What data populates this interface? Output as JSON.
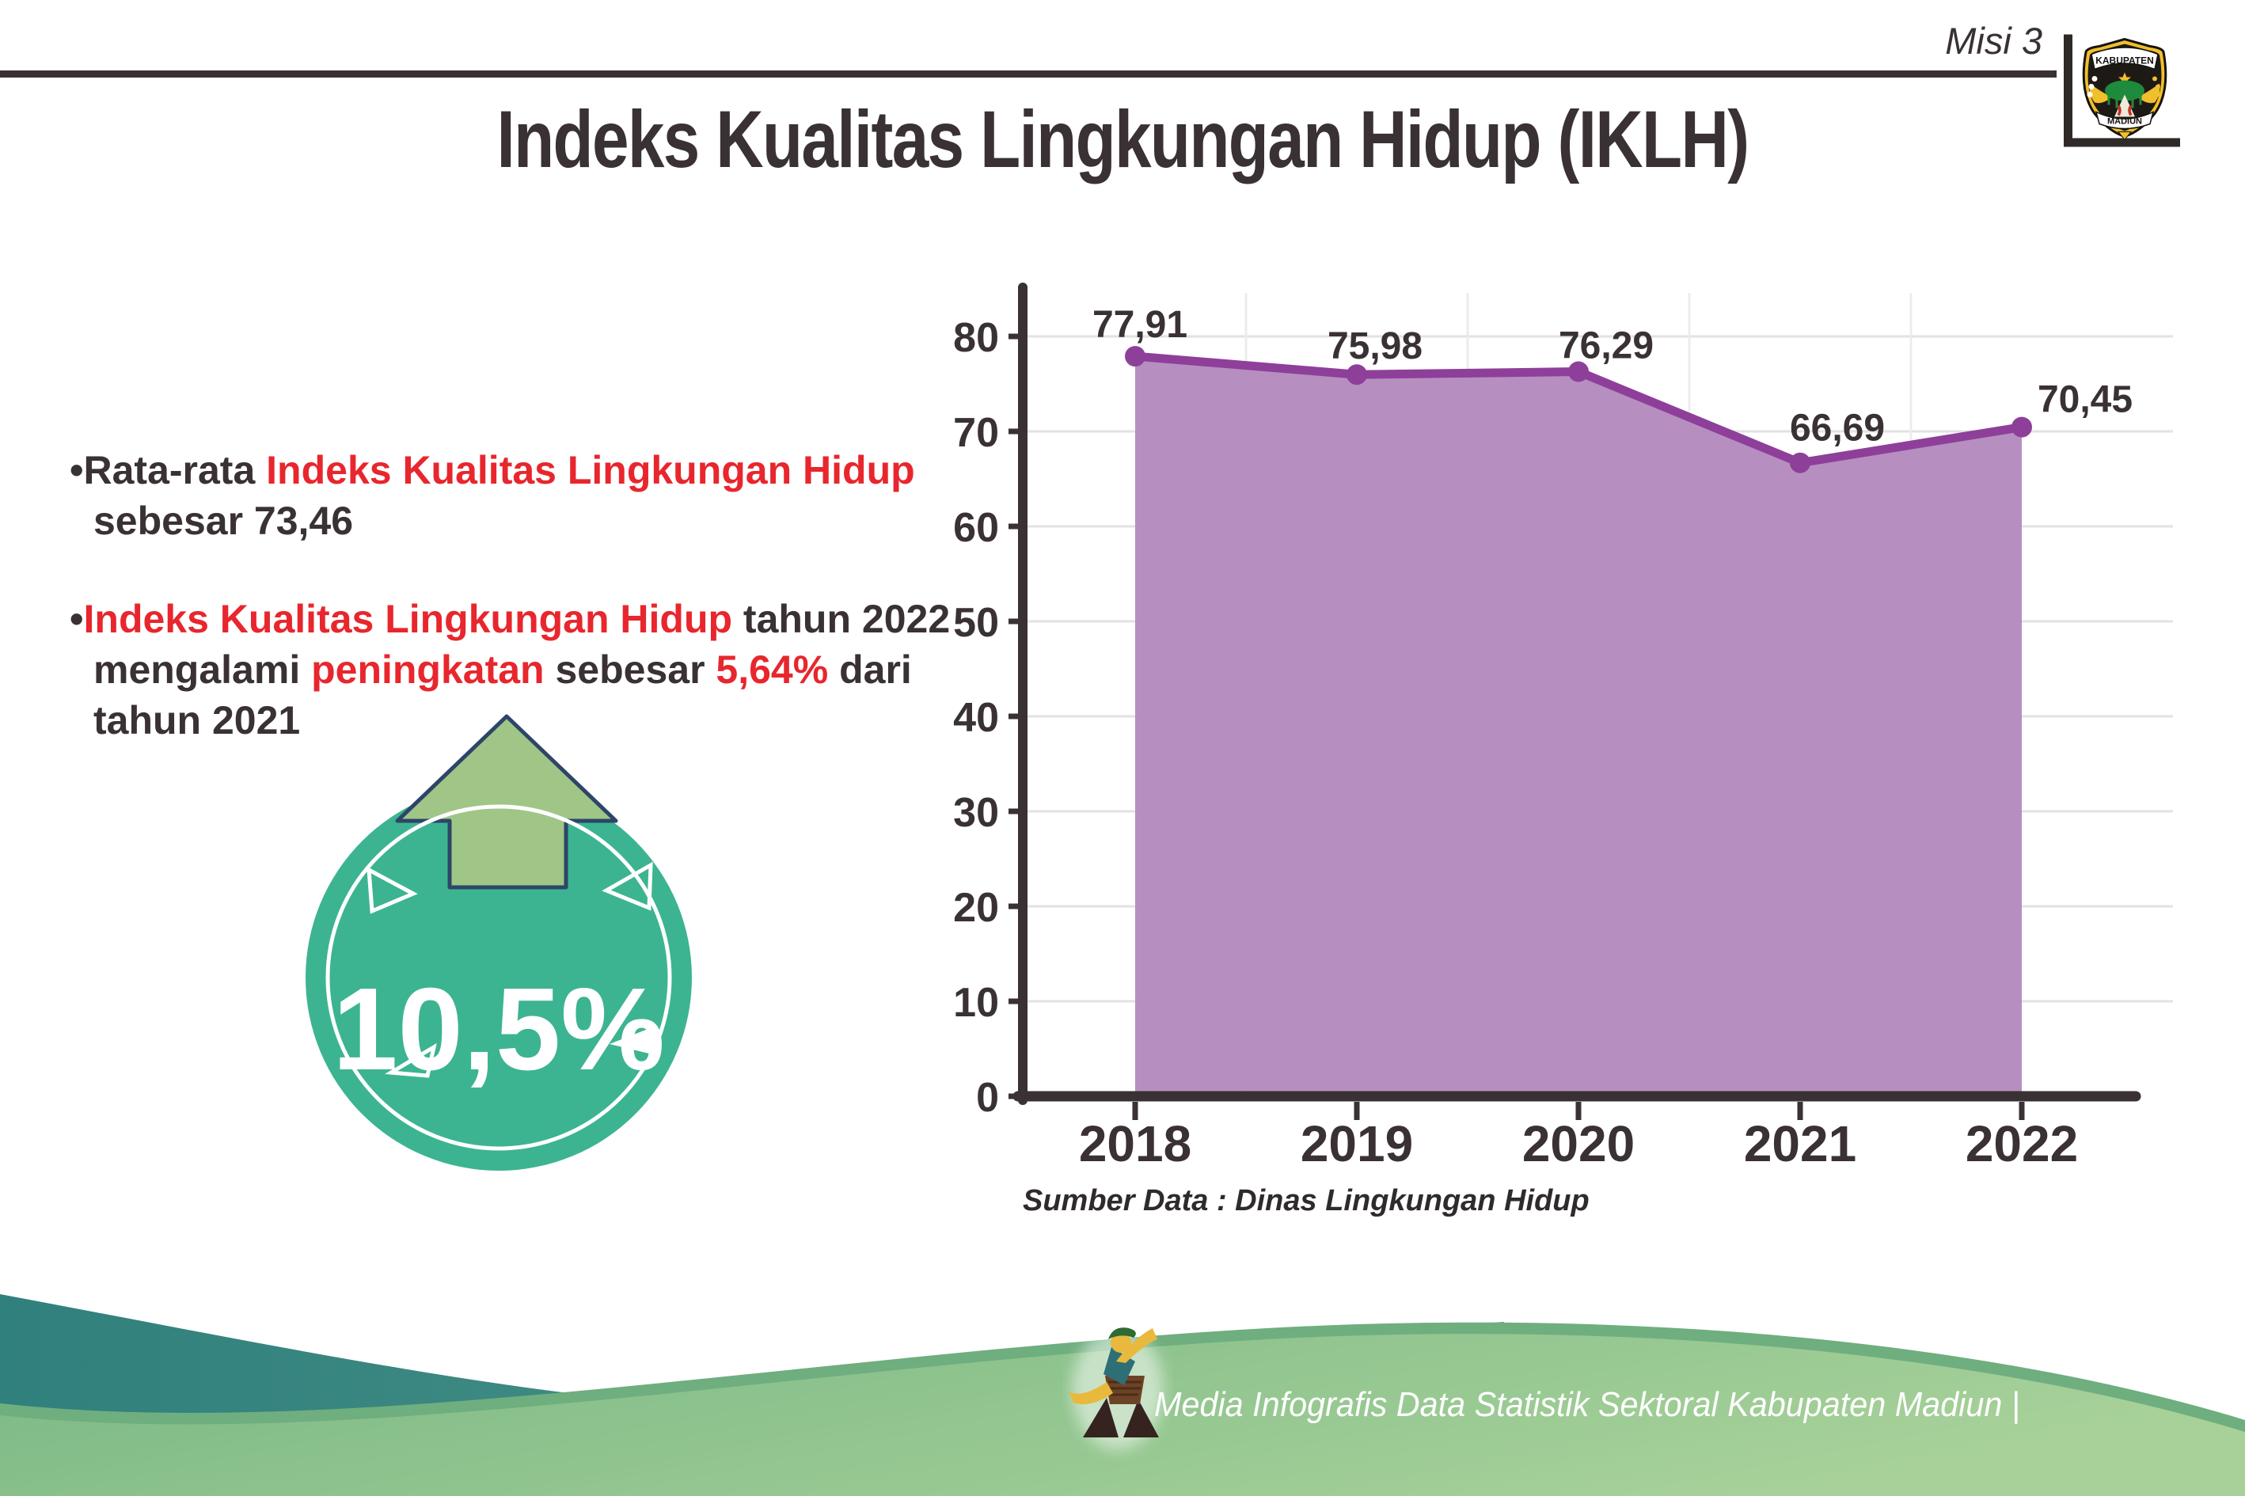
{
  "header": {
    "misi_label": "Misi 3",
    "title": "Indeks Kualitas Lingkungan Hidup (IKLH)",
    "logo": {
      "top_text": "KABUPATEN",
      "bottom_text": "MADIUN"
    }
  },
  "bullets": {
    "b1": [
      {
        "t": "•",
        "c": "dark"
      },
      {
        "t": "Rata-rata ",
        "c": "dark"
      },
      {
        "t": "Indeks Kualitas Lingkungan Hidup",
        "c": "red"
      },
      {
        "t": "\nsebesar 73,46",
        "c": "dark"
      }
    ],
    "b2": [
      {
        "t": "•",
        "c": "dark"
      },
      {
        "t": "Indeks Kualitas Lingkungan Hidup",
        "c": "red"
      },
      {
        "t": " tahun 2022\nmengalami ",
        "c": "dark"
      },
      {
        "t": "peningkatan",
        "c": "red"
      },
      {
        "t": " sebesar ",
        "c": "dark"
      },
      {
        "t": "5,64%",
        "c": "red"
      },
      {
        "t": " dari\ntahun 2021",
        "c": "dark"
      }
    ]
  },
  "badge": {
    "value": "10,5%"
  },
  "chart_data": {
    "type": "area",
    "categories": [
      "2018",
      "2019",
      "2020",
      "2021",
      "2022"
    ],
    "values": [
      77.91,
      75.98,
      76.29,
      66.69,
      70.45
    ],
    "value_labels": [
      "77,91",
      "75,98",
      "76,29",
      "66,69",
      "70,45"
    ],
    "y_ticks": [
      0,
      10,
      20,
      30,
      40,
      50,
      60,
      70,
      80
    ],
    "ylim": [
      0,
      80
    ],
    "title": "",
    "xlabel": "",
    "ylabel": "",
    "grid": true,
    "legend": "none",
    "source_note": "Sumber Data : Dinas Lingkungan Hidup"
  },
  "footer": {
    "caption": "Media Infografis Data Statistik Sektoral Kabupaten Madiun |"
  },
  "colors": {
    "dark": "#3A3134",
    "red": "#E8262D",
    "purple-fill": "#B289BD",
    "purple-line": "#8E3F9A",
    "badge-teal": "#3CB491",
    "arrow-green": "#9FC687",
    "arrow-outline": "#2E4568",
    "grid": "#E2E2E2",
    "vgrid": "#ECECEC",
    "footer-teal-1": "#30807D",
    "footer-teal-2": "#55998B",
    "dome-edge": "#6FAE7E",
    "dome-1": "#79B785",
    "dome-2": "#A7D199"
  }
}
